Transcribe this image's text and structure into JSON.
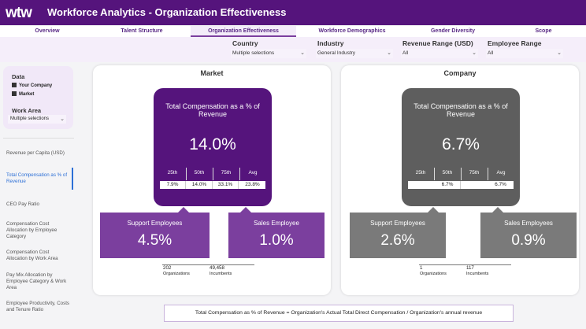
{
  "header": {
    "logo": "wtw",
    "title": "Workforce Analytics - Organization Effectiveness",
    "color": "#55147c"
  },
  "tabs": [
    {
      "label": "Overview"
    },
    {
      "label": "Talent Structure"
    },
    {
      "label": "Organization Effectiveness",
      "active": true
    },
    {
      "label": "Workforce Demographics"
    },
    {
      "label": "Gender Diversity"
    },
    {
      "label": "Scope"
    }
  ],
  "filters": [
    {
      "label": "Country",
      "value": "Multiple selections"
    },
    {
      "label": "Industry",
      "value": "General Industry"
    },
    {
      "label": "Revenue Range (USD)",
      "value": "All"
    },
    {
      "label": "Employee Range",
      "value": "All"
    }
  ],
  "sidebar": {
    "data_label": "Data",
    "checkboxes": [
      {
        "label": "Your Company",
        "checked": true
      },
      {
        "label": "Market",
        "checked": true
      }
    ],
    "work_area_label": "Work Area",
    "work_area_value": "Multiple selections",
    "nav": [
      "Revenue per Capita (USD)",
      "Total Compensation as % of Revenue",
      "CEO Pay Ratio",
      "Compensation Cost Allocation by Employee Category",
      "Compensation Cost Allocation by Work Area",
      "Pay Mix Allocation by Employee Category & Work Area",
      "Employee Productivity, Costs and Tenure Ratio"
    ],
    "active_nav": 1
  },
  "market": {
    "title": "Market",
    "metric_title": "Total Compensation as a % of Revenue",
    "value": "14.0%",
    "percentile_headers": [
      "25th",
      "50th",
      "75th",
      "Avg"
    ],
    "percentile_values": [
      "7.9%",
      "14.0%",
      "33.1%",
      "23.8%"
    ],
    "support_label": "Support Employees",
    "support_value": "4.5%",
    "sales_label": "Sales Employee",
    "sales_value": "1.0%",
    "organizations": "202",
    "organizations_label": "Organizations",
    "incumbents": "49,458",
    "incumbents_label": "Incumbents",
    "color": "#55147c",
    "sub_color": "#7b3f9e"
  },
  "company": {
    "title": "Company",
    "metric_title": "Total Compensation as a % of Revenue",
    "value": "6.7%",
    "percentile_headers": [
      "25th",
      "50th",
      "75th",
      "Avg"
    ],
    "percentile_values": [
      "",
      "6.7%",
      "",
      "6.7%"
    ],
    "support_label": "Support Employees",
    "support_value": "2.6%",
    "sales_label": "Sales Employees",
    "sales_value": "0.9%",
    "organizations": "1",
    "organizations_label": "Organizations",
    "incumbents": "117",
    "incumbents_label": "Incumbents",
    "color": "#5e5e5e",
    "sub_color": "#7a7a7a"
  },
  "formula": "Total Compensation as % of Revenue = Organization's Actual Total Direct Compensation / Organization's annual revenue"
}
